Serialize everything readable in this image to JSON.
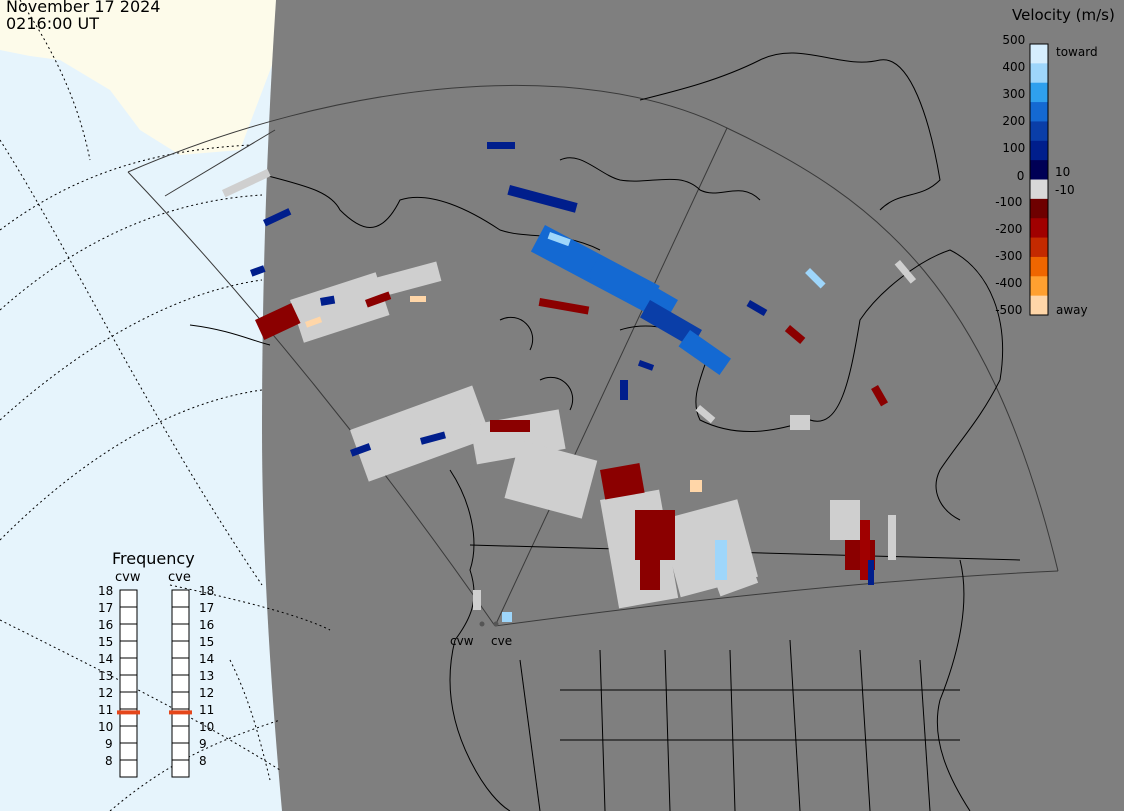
{
  "header": {
    "date": "November 17 2024",
    "time": "0216:00 UT"
  },
  "legend": {
    "title": "Velocity (m/s)",
    "toward_label": "toward",
    "away_label": "away",
    "ticks": [
      "500",
      "400",
      "300",
      "200",
      "100",
      "10",
      "0",
      "-10",
      "-100",
      "-200",
      "-300",
      "-400",
      "-500"
    ],
    "colors": [
      "#d6eefe",
      "#9ed6fb",
      "#2fa0ee",
      "#1469d2",
      "#0a3ea8",
      "#001e8c",
      "#000055",
      "#d8d8d8",
      "#6e0000",
      "#a00000",
      "#c42a00",
      "#ef6600",
      "#ffa030",
      "#ffd6a8"
    ]
  },
  "frequency": {
    "title": "Frequency",
    "radars": [
      "cvw",
      "cve"
    ],
    "levels": [
      "18",
      "17",
      "16",
      "15",
      "14",
      "13",
      "12",
      "11",
      "10",
      "9",
      "8"
    ],
    "selected": [
      10.8,
      10.8
    ],
    "marker_color": "#e5461a"
  },
  "radar_labels": [
    "cvw",
    "cve"
  ],
  "colors": {
    "background": "#ffffff",
    "ocean": "#e6f4fc",
    "ice": "#fdfbea",
    "night_land": "#7f7f7f",
    "ground_scatter": "#cfcfcf"
  }
}
